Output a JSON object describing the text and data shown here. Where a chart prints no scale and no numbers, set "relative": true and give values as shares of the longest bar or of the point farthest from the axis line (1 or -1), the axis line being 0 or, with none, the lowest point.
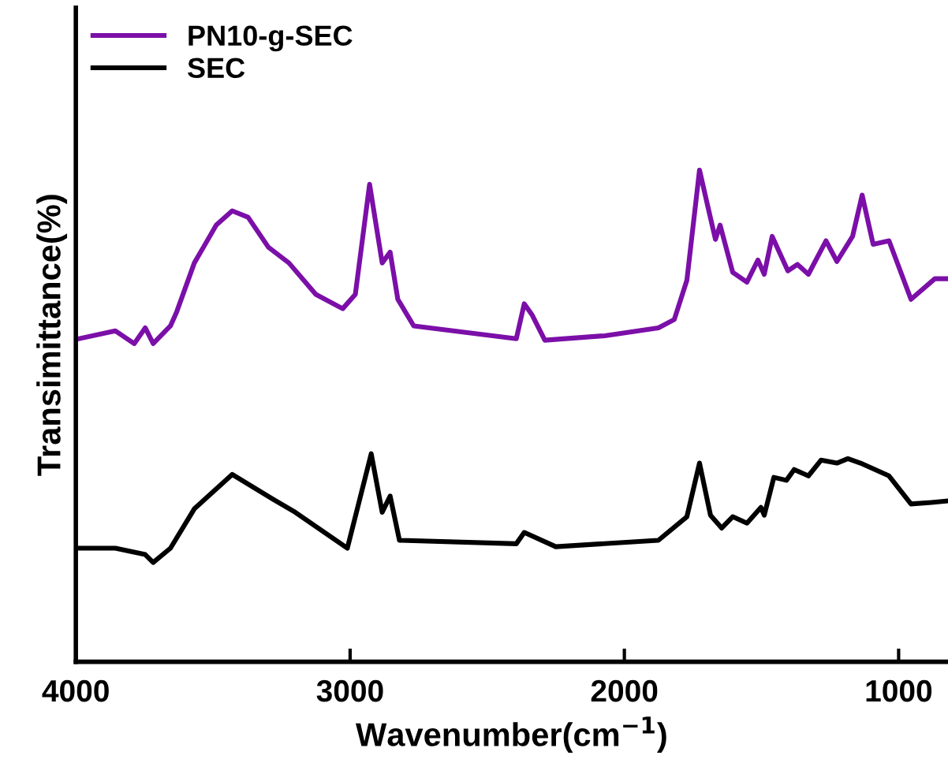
{
  "chart_data": {
    "type": "line",
    "relative": true,
    "xlabel": "Wavenumber(cm$^{−1}$)",
    "ylabel": "Transimittance(%)",
    "xlim": [
      4000,
      820
    ],
    "xticks": [
      4000,
      3000,
      2000,
      1000
    ],
    "legend": "top left",
    "grid": false,
    "series": [
      {
        "name": "PN10-g-SEC",
        "color": "#7b0fa8",
        "x": [
          3988,
          3856,
          3787,
          3747,
          3718,
          3655,
          3632,
          3568,
          3488,
          3430,
          3372,
          3298,
          3223,
          3125,
          3027,
          2981,
          2929,
          2883,
          2854,
          2826,
          2768,
          2394,
          2365,
          2336,
          2290,
          2071,
          1876,
          1818,
          1772,
          1726,
          1697,
          1668,
          1651,
          1605,
          1553,
          1513,
          1490,
          1461,
          1404,
          1369,
          1329,
          1265,
          1225,
          1168,
          1133,
          1093,
          1035,
          955,
          868,
          822
        ],
        "values": [
          0.657,
          0.673,
          0.647,
          0.679,
          0.647,
          0.683,
          0.712,
          0.811,
          0.888,
          0.917,
          0.904,
          0.843,
          0.811,
          0.747,
          0.718,
          0.747,
          0.971,
          0.811,
          0.833,
          0.737,
          0.683,
          0.657,
          0.728,
          0.705,
          0.654,
          0.663,
          0.679,
          0.696,
          0.776,
          1.0,
          0.929,
          0.859,
          0.888,
          0.792,
          0.772,
          0.817,
          0.788,
          0.865,
          0.795,
          0.808,
          0.788,
          0.856,
          0.814,
          0.865,
          0.949,
          0.849,
          0.856,
          0.737,
          0.779,
          0.779
        ]
      },
      {
        "name": "SEC",
        "color": "#000000",
        "x": [
          3988,
          3856,
          3747,
          3718,
          3655,
          3568,
          3430,
          3280,
          3200,
          3010,
          2923,
          2883,
          2854,
          2820,
          2394,
          2365,
          2250,
          1876,
          1772,
          1726,
          1686,
          1645,
          1605,
          1553,
          1502,
          1490,
          1455,
          1409,
          1381,
          1329,
          1283,
          1225,
          1185,
          1139,
          1035,
          955,
          880,
          822
        ],
        "values": [
          0.231,
          0.231,
          0.218,
          0.202,
          0.231,
          0.311,
          0.381,
          0.33,
          0.304,
          0.231,
          0.423,
          0.304,
          0.337,
          0.247,
          0.24,
          0.263,
          0.234,
          0.247,
          0.295,
          0.404,
          0.298,
          0.272,
          0.295,
          0.282,
          0.314,
          0.298,
          0.375,
          0.369,
          0.391,
          0.378,
          0.41,
          0.404,
          0.413,
          0.404,
          0.378,
          0.321,
          0.324,
          0.327
        ]
      }
    ]
  }
}
